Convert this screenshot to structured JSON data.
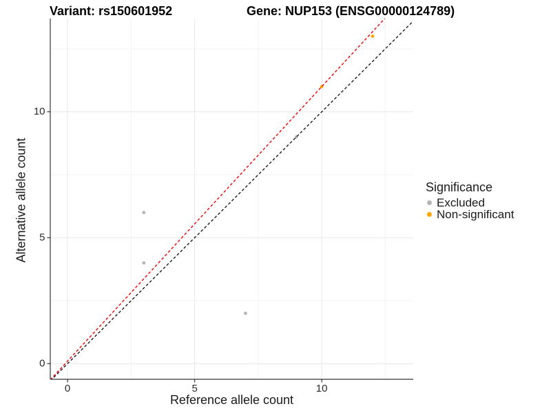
{
  "chart_data": {
    "type": "scatter",
    "titles": {
      "left": "Variant: rs150601952",
      "right": "Gene: NUP153 (ENSG00000124789)"
    },
    "xlabel": "Reference allele count",
    "ylabel": "Alternative allele count",
    "xlim": [
      -0.68,
      13.6
    ],
    "ylim": [
      -0.62,
      13.7
    ],
    "x_major_ticks": [
      0,
      5,
      10
    ],
    "y_major_ticks": [
      0,
      5,
      10
    ],
    "x_minor_gridlines": [
      2.5,
      7.5,
      12.5
    ],
    "y_minor_gridlines": [
      2.5,
      7.5,
      12.5
    ],
    "grid": {
      "major_color": "#e7e7e7",
      "minor_color": "#f2f2f2"
    },
    "axis_color": "#333333",
    "point_radius": 2.4,
    "series": [
      {
        "name": "Excluded",
        "color": "#b5b5b5",
        "points": [
          [
            3,
            6
          ],
          [
            3,
            4
          ],
          [
            7,
            2
          ],
          [
            9,
            9
          ]
        ]
      },
      {
        "name": "Non-significant",
        "color": "#ffa500",
        "points": [
          [
            10,
            11
          ],
          [
            12,
            13
          ]
        ]
      }
    ],
    "abline": [
      {
        "name": "identity-line",
        "color": "#1a1a1a",
        "slope": 1,
        "intercept": 0,
        "dash": "4 3"
      },
      {
        "name": "fit-line",
        "color": "#ee0000",
        "slope": 1.09,
        "intercept": 0.1,
        "dash": "4 3"
      }
    ],
    "legend": {
      "title": "Significance",
      "position": "right"
    }
  }
}
